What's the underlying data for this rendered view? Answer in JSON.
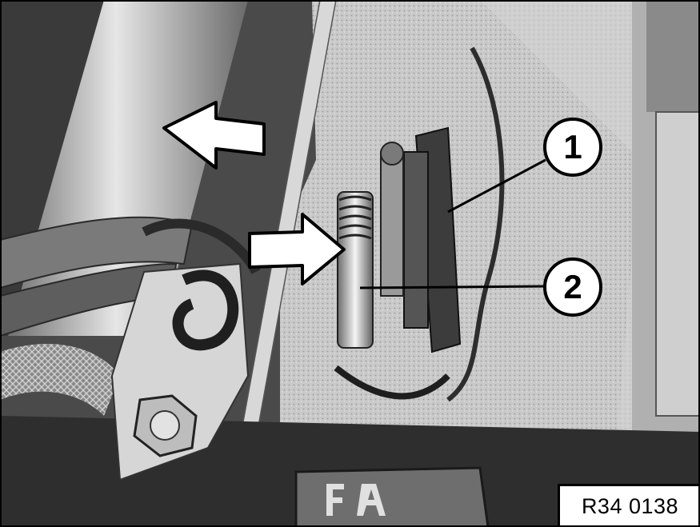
{
  "figure": {
    "callouts": [
      {
        "label": "1"
      },
      {
        "label": "2"
      }
    ],
    "reference_code": "R34 0138"
  },
  "colors": {
    "line_art": "#000000",
    "background": "#ffffff",
    "photo_mid_gray": "#a8a8a8"
  }
}
